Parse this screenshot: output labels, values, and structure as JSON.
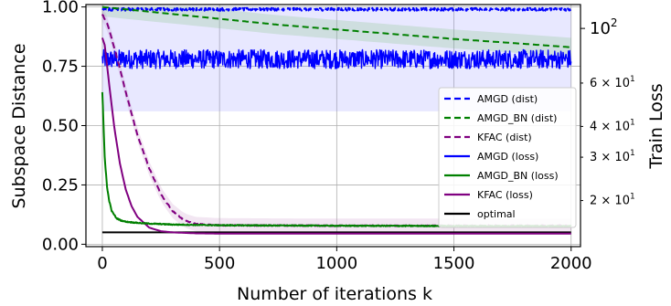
{
  "chart_data": {
    "type": "line",
    "title": "",
    "xlabel": "Number of iterations k",
    "ylabel": "Subspace Distance",
    "ylabel_right": "Train Loss",
    "xlim": [
      -70,
      2040
    ],
    "ylim": [
      -0.01,
      1.01
    ],
    "y2_scale": "log",
    "y2lim": [
      13,
      125
    ],
    "grid": true,
    "legend_position": "center-right",
    "x_ticks": [
      {
        "value": 0,
        "label": "0"
      },
      {
        "value": 500,
        "label": "500"
      },
      {
        "value": 1000,
        "label": "1000"
      },
      {
        "value": 1500,
        "label": "1500"
      },
      {
        "value": 2000,
        "label": "2000"
      }
    ],
    "y_ticks": [
      {
        "value": 0.0,
        "label": "0.00"
      },
      {
        "value": 0.25,
        "label": "0.25"
      },
      {
        "value": 0.5,
        "label": "0.50"
      },
      {
        "value": 0.75,
        "label": "0.75"
      },
      {
        "value": 1.0,
        "label": "1.00"
      }
    ],
    "y2_ticks": [
      {
        "value": 100,
        "label": "10",
        "sup": "2",
        "major": true
      },
      {
        "value": 60,
        "label": "6 × 10",
        "sup": "1",
        "major": false
      },
      {
        "value": 40,
        "label": "4 × 10",
        "sup": "1",
        "major": false
      },
      {
        "value": 30,
        "label": "3 × 10",
        "sup": "1",
        "major": false
      },
      {
        "value": 20,
        "label": "2 × 10",
        "sup": "1",
        "major": false
      }
    ],
    "series": [
      {
        "name": "AMGD (dist)",
        "axis": "left",
        "style": "dashed",
        "color": "#0000ff",
        "x": [
          0,
          500,
          1000,
          1500,
          2000
        ],
        "y": [
          0.99,
          0.99,
          0.99,
          0.99,
          0.99
        ],
        "noise": 0.006
      },
      {
        "name": "AMGD_BN (dist)",
        "axis": "left",
        "style": "dashed",
        "color": "#008000",
        "x": [
          0,
          50,
          250,
          500,
          750,
          1000,
          1250,
          1500,
          1750,
          2000
        ],
        "y": [
          1.0,
          0.995,
          0.975,
          0.95,
          0.925,
          0.905,
          0.885,
          0.865,
          0.848,
          0.83
        ],
        "noise": 0
      },
      {
        "name": "KFAC (dist)",
        "axis": "left",
        "style": "dashed",
        "color": "#800080",
        "x": [
          0,
          25,
          50,
          75,
          100,
          150,
          200,
          250,
          300,
          350,
          400,
          500,
          1000,
          1500,
          2000
        ],
        "y": [
          0.97,
          0.92,
          0.83,
          0.74,
          0.64,
          0.46,
          0.32,
          0.21,
          0.14,
          0.1,
          0.085,
          0.08,
          0.078,
          0.078,
          0.078
        ],
        "noise": 0.002
      },
      {
        "name": "AMGD (loss)",
        "axis": "right",
        "style": "solid",
        "color": "#0000ff",
        "x": [
          0,
          500,
          1000,
          1500,
          2000
        ],
        "y": [
          0.78,
          0.78,
          0.78,
          0.78,
          0.78
        ],
        "noise": 0.04
      },
      {
        "name": "AMGD_BN (loss)",
        "axis": "right",
        "style": "solid",
        "color": "#008000",
        "x": [
          0,
          5,
          10,
          20,
          30,
          40,
          60,
          80,
          100,
          150,
          200,
          300,
          500,
          1000,
          1500,
          2000
        ],
        "y": [
          0.64,
          0.5,
          0.37,
          0.24,
          0.18,
          0.14,
          0.11,
          0.1,
          0.095,
          0.09,
          0.087,
          0.083,
          0.08,
          0.078,
          0.077,
          0.076
        ],
        "noise": 0.002
      },
      {
        "name": "KFAC (loss)",
        "axis": "right",
        "style": "solid",
        "color": "#800080",
        "x": [
          0,
          10,
          25,
          50,
          75,
          100,
          125,
          150,
          200,
          250,
          300,
          400,
          500,
          1000,
          2000
        ],
        "y": [
          0.87,
          0.84,
          0.71,
          0.5,
          0.34,
          0.23,
          0.16,
          0.115,
          0.07,
          0.055,
          0.05,
          0.046,
          0.045,
          0.045,
          0.045
        ],
        "noise": 0
      },
      {
        "name": "optimal",
        "axis": "left",
        "style": "solid",
        "color": "#000000",
        "x": [
          0,
          2000
        ],
        "y": [
          0.05,
          0.05
        ],
        "noise": 0
      }
    ]
  }
}
